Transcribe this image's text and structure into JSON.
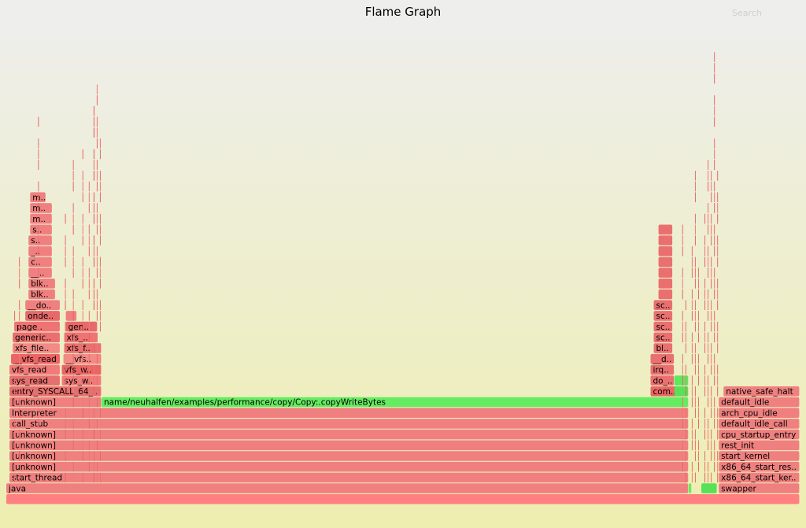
{
  "title": "Flame Graph",
  "search_label": "Search",
  "chart_data": {
    "type": "flame",
    "title": "Flame Graph",
    "total_width": 1000,
    "frames": [
      {
        "name": "",
        "depth": 0,
        "start": 0,
        "width": 1000
      },
      {
        "name": "java",
        "depth": 1,
        "start": 0,
        "width": 860
      },
      {
        "name": "start_thread",
        "depth": 2,
        "start": 4,
        "width": 856
      },
      {
        "name": "[unknown]",
        "depth": 3,
        "start": 4,
        "width": 856
      },
      {
        "name": "[unknown]",
        "depth": 4,
        "start": 4,
        "width": 856
      },
      {
        "name": "[unknown]",
        "depth": 5,
        "start": 4,
        "width": 856
      },
      {
        "name": "[unknown]",
        "depth": 6,
        "start": 4,
        "width": 856
      },
      {
        "name": "call_stub",
        "depth": 7,
        "start": 4,
        "width": 856
      },
      {
        "name": "Interpreter",
        "depth": 8,
        "start": 4,
        "width": 856
      },
      {
        "name": "[unknown]",
        "depth": 9,
        "start": 4,
        "width": 116
      },
      {
        "name": "name/neuhalfen/examples/performance/copy/Copy:.copyWriteBytes",
        "depth": 9,
        "start": 120,
        "width": 740,
        "color": "green"
      },
      {
        "name": "entry_SYSCALL_64_..",
        "depth": 10,
        "start": 4,
        "width": 116
      },
      {
        "name": "sys_read",
        "depth": 11,
        "start": 4,
        "width": 64
      },
      {
        "name": "sys_w..",
        "depth": 11,
        "start": 70,
        "width": 50
      },
      {
        "name": "vfs_read",
        "depth": 12,
        "start": 4,
        "width": 64
      },
      {
        "name": "vfs_w..",
        "depth": 12,
        "start": 70,
        "width": 50
      },
      {
        "name": "__vfs_read",
        "depth": 13,
        "start": 6,
        "width": 62
      },
      {
        "name": "__vfs..",
        "depth": 13,
        "start": 72,
        "width": 48
      },
      {
        "name": "xfs_file..",
        "depth": 14,
        "start": 8,
        "width": 60
      },
      {
        "name": "xfs_f..",
        "depth": 14,
        "start": 73,
        "width": 47
      },
      {
        "name": "generic..",
        "depth": 15,
        "start": 8,
        "width": 60
      },
      {
        "name": "xfs_..",
        "depth": 15,
        "start": 73,
        "width": 42
      },
      {
        "name": "page..",
        "depth": 16,
        "start": 10,
        "width": 58
      },
      {
        "name": "gen..",
        "depth": 16,
        "start": 75,
        "width": 40
      },
      {
        "name": "onde..",
        "depth": 17,
        "start": 24,
        "width": 44
      },
      {
        "name": "",
        "depth": 17,
        "start": 75,
        "width": 14
      },
      {
        "name": "__do..",
        "depth": 18,
        "start": 24,
        "width": 44
      },
      {
        "name": "blk..",
        "depth": 19,
        "start": 28,
        "width": 34
      },
      {
        "name": "blk..",
        "depth": 20,
        "start": 28,
        "width": 34
      },
      {
        "name": "__..",
        "depth": 21,
        "start": 28,
        "width": 30
      },
      {
        "name": "c..",
        "depth": 22,
        "start": 28,
        "width": 30
      },
      {
        "name": "_..",
        "depth": 23,
        "start": 28,
        "width": 30
      },
      {
        "name": "s..",
        "depth": 24,
        "start": 28,
        "width": 30
      },
      {
        "name": "s..",
        "depth": 25,
        "start": 30,
        "width": 28
      },
      {
        "name": "m..",
        "depth": 26,
        "start": 30,
        "width": 28
      },
      {
        "name": "m..",
        "depth": 27,
        "start": 30,
        "width": 28
      },
      {
        "name": "m..",
        "depth": 28,
        "start": 30,
        "width": 20
      },
      {
        "name": "com..",
        "depth": 10,
        "start": 812,
        "width": 40
      },
      {
        "name": "",
        "depth": 10,
        "start": 842,
        "width": 18,
        "color": "green"
      },
      {
        "name": "",
        "depth": 11,
        "start": 842,
        "width": 18,
        "color": "green"
      },
      {
        "name": "do_..",
        "depth": 11,
        "start": 812,
        "width": 30
      },
      {
        "name": "irq..",
        "depth": 12,
        "start": 812,
        "width": 30
      },
      {
        "name": "__d..",
        "depth": 13,
        "start": 812,
        "width": 30
      },
      {
        "name": "bl..",
        "depth": 14,
        "start": 816,
        "width": 24
      },
      {
        "name": "sc..",
        "depth": 15,
        "start": 816,
        "width": 24
      },
      {
        "name": "sc..",
        "depth": 16,
        "start": 816,
        "width": 24
      },
      {
        "name": "sc..",
        "depth": 17,
        "start": 816,
        "width": 24
      },
      {
        "name": "sc..",
        "depth": 18,
        "start": 816,
        "width": 24
      },
      {
        "name": "",
        "depth": 19,
        "start": 822,
        "width": 18
      },
      {
        "name": "",
        "depth": 20,
        "start": 822,
        "width": 18
      },
      {
        "name": "",
        "depth": 21,
        "start": 822,
        "width": 18
      },
      {
        "name": "",
        "depth": 22,
        "start": 822,
        "width": 18
      },
      {
        "name": "",
        "depth": 23,
        "start": 822,
        "width": 18
      },
      {
        "name": "",
        "depth": 24,
        "start": 822,
        "width": 18
      },
      {
        "name": "",
        "depth": 25,
        "start": 822,
        "width": 18
      },
      {
        "name": "",
        "depth": 1,
        "start": 860,
        "width": 4,
        "color": "green"
      },
      {
        "name": "",
        "depth": 1,
        "start": 876,
        "width": 20,
        "color": "green"
      },
      {
        "name": "swapper",
        "depth": 1,
        "start": 898,
        "width": 102
      },
      {
        "name": "x86_64_start_ker..",
        "depth": 2,
        "start": 898,
        "width": 102
      },
      {
        "name": "x86_64_start_res..",
        "depth": 3,
        "start": 898,
        "width": 102
      },
      {
        "name": "start_kernel",
        "depth": 4,
        "start": 898,
        "width": 102
      },
      {
        "name": "rest_init",
        "depth": 5,
        "start": 898,
        "width": 102
      },
      {
        "name": "cpu_startup_entry",
        "depth": 6,
        "start": 898,
        "width": 102
      },
      {
        "name": "default_idle_call",
        "depth": 7,
        "start": 898,
        "width": 102
      },
      {
        "name": "arch_cpu_idle",
        "depth": 8,
        "start": 898,
        "width": 102
      },
      {
        "name": "default_idle",
        "depth": 9,
        "start": 898,
        "width": 102
      },
      {
        "name": "native_safe_halt",
        "depth": 10,
        "start": 904,
        "width": 96
      }
    ]
  }
}
